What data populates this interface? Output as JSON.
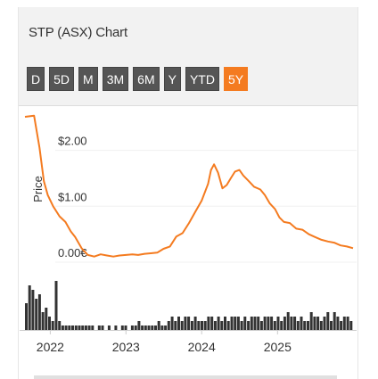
{
  "header": {
    "title": "STP (ASX) Chart"
  },
  "ranges": [
    {
      "label": "D",
      "active": false
    },
    {
      "label": "5D",
      "active": false
    },
    {
      "label": "M",
      "active": false
    },
    {
      "label": "3M",
      "active": false
    },
    {
      "label": "6M",
      "active": false
    },
    {
      "label": "Y",
      "active": false
    },
    {
      "label": "YTD",
      "active": false
    },
    {
      "label": "5Y",
      "active": true
    }
  ],
  "colors": {
    "line": "#f47b20",
    "volume": "#333333",
    "active_button": "#f47b20",
    "button": "#555555"
  },
  "chart_data": {
    "type": "line",
    "ylabel": "Price",
    "ytick_labels": [
      "$2.00",
      "$1.00",
      "0.00€"
    ],
    "xtick_labels": [
      "2022",
      "2023",
      "2024",
      "2025"
    ],
    "ylim": [
      0,
      2.6
    ],
    "x_range": [
      "2021-09-01",
      "2025-12-31"
    ],
    "series": [
      {
        "values_date": [
          "2021-09-01",
          "2021-10-15",
          "2021-11-10",
          "2021-12-01",
          "2021-12-20",
          "2022-01-15",
          "2022-02-15",
          "2022-03-15",
          "2022-04-10",
          "2022-05-01",
          "2022-06-01",
          "2022-07-01",
          "2022-08-01",
          "2022-09-01",
          "2022-10-01",
          "2022-11-01",
          "2022-12-01",
          "2023-01-01",
          "2023-02-01",
          "2023-03-01",
          "2023-04-01",
          "2023-05-01",
          "2023-06-01",
          "2023-07-01",
          "2023-08-01",
          "2023-09-01",
          "2023-10-01",
          "2023-11-01",
          "2023-12-01",
          "2024-01-01",
          "2024-02-01",
          "2024-02-15",
          "2024-03-01",
          "2024-03-20",
          "2024-04-10",
          "2024-05-01",
          "2024-05-20",
          "2024-06-10",
          "2024-07-01",
          "2024-07-20",
          "2024-08-15",
          "2024-09-10",
          "2024-10-10",
          "2024-11-01",
          "2024-11-25",
          "2024-12-20",
          "2025-01-10",
          "2025-02-01",
          "2025-03-01",
          "2025-04-01",
          "2025-05-01",
          "2025-06-01",
          "2025-07-01",
          "2025-08-01",
          "2025-09-01",
          "2025-10-01",
          "2025-11-01",
          "2025-12-01",
          "2025-12-31"
        ],
        "values": [
          2.6,
          2.62,
          2.05,
          1.45,
          1.2,
          1.0,
          0.82,
          0.72,
          0.55,
          0.45,
          0.25,
          0.13,
          0.1,
          0.14,
          0.12,
          0.1,
          0.12,
          0.13,
          0.14,
          0.13,
          0.15,
          0.16,
          0.17,
          0.24,
          0.28,
          0.46,
          0.52,
          0.7,
          0.9,
          1.1,
          1.4,
          1.65,
          1.75,
          1.6,
          1.32,
          1.38,
          1.5,
          1.62,
          1.65,
          1.55,
          1.45,
          1.35,
          1.3,
          1.2,
          1.05,
          0.95,
          0.8,
          0.72,
          0.7,
          0.6,
          0.58,
          0.5,
          0.45,
          0.4,
          0.37,
          0.35,
          0.3,
          0.28,
          0.25
        ]
      }
    ],
    "volume": {
      "values": [
        6,
        10,
        9,
        7,
        8,
        4,
        5,
        3,
        2,
        11,
        2,
        1,
        1,
        1,
        1,
        1,
        1,
        1,
        1,
        1,
        1,
        0,
        1,
        1,
        0,
        1,
        0,
        1,
        0,
        1,
        1,
        0,
        1,
        1,
        2,
        1,
        1,
        1,
        1,
        1,
        2,
        1,
        1,
        2,
        3,
        2,
        3,
        2,
        3,
        3,
        2,
        3,
        2,
        2,
        2,
        3,
        3,
        2,
        3,
        2,
        3,
        2,
        3,
        3,
        3,
        2,
        3,
        2,
        3,
        3,
        3,
        2,
        3,
        3,
        3,
        2,
        3,
        2,
        3,
        4,
        3,
        3,
        2,
        3,
        2,
        2,
        4,
        3,
        3,
        2,
        3,
        4,
        2,
        4,
        3,
        2,
        3,
        3,
        2
      ]
    }
  }
}
